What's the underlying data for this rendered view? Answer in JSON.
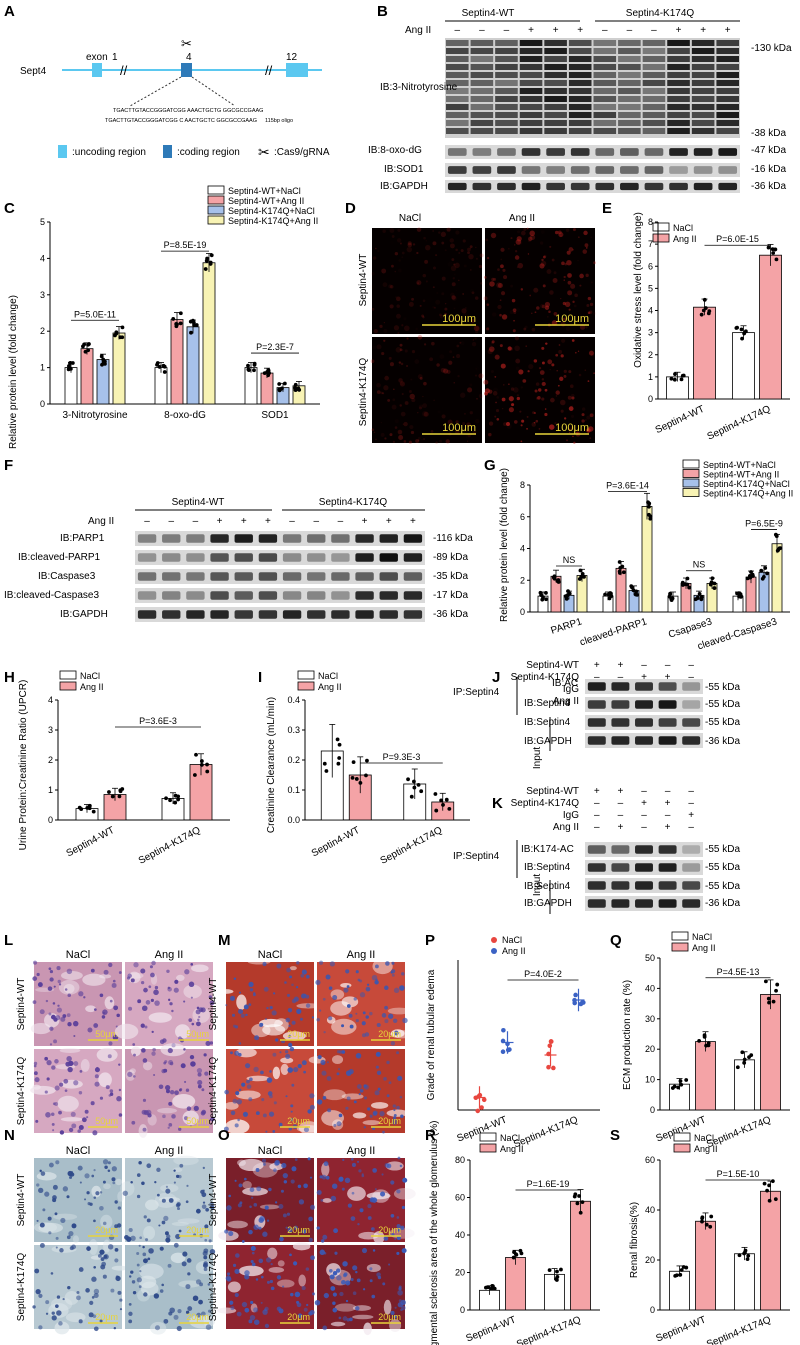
{
  "panels": {
    "A": {
      "letter": "A",
      "gene": "Sept4",
      "exon_word": "exon",
      "exon_numbers": [
        "1",
        "4",
        "12"
      ],
      "seq1": "TGACTTGTACCGGGATCGG AAACTGCTG GGCGCCGAAG",
      "seq2": "TGACTTGTACCGGGATCGG C AACTGCTC GGCGCCGAAG",
      "oligo_label": "115bp oligo",
      "legend": {
        "uncoding": ":uncoding region",
        "coding": ":coding region",
        "cas9": ":Cas9/gRNA"
      },
      "colors": {
        "uncoding": "#5bc8f0",
        "coding": "#2e7ab8"
      }
    },
    "B": {
      "letter": "B",
      "groups": [
        "Septin4-WT",
        "Septin4-K174Q"
      ],
      "treat_label": "Ang II",
      "treat": [
        "–",
        "–",
        "–",
        "+",
        "+",
        "+",
        "–",
        "–",
        "–",
        "+",
        "+",
        "+"
      ],
      "rows": [
        "IB:3-Nitrotyrosine",
        "IB:8-oxo-dG",
        "IB:SOD1",
        "IB:GAPDH"
      ],
      "mw": [
        "-130 kDa",
        "-38 kDa",
        "-47 kDa",
        "-16 kDa",
        "-36 kDa"
      ]
    },
    "C": {
      "letter": "C",
      "ylabel": "Relative protein level (fold change)",
      "legend": [
        "Septin4-WT+NaCl",
        "Septin4-WT+Ang II",
        "Septin4-K174Q+NaCl",
        "Septin4-K174Q+Ang II"
      ],
      "pvals": [
        "P=5.0E-11",
        "P=8.5E-19",
        "P=2.3E-7"
      ]
    },
    "D": {
      "letter": "D",
      "cols": [
        "NaCl",
        "Ang II"
      ],
      "rows": [
        "Septin4-WT",
        "Septin4-K174Q"
      ],
      "scale": "100μm"
    },
    "E": {
      "letter": "E",
      "ylabel": "Oxidative stress level (fold change)",
      "legend": [
        "NaCl",
        "Ang II"
      ],
      "pval": "P=6.0E-15"
    },
    "F": {
      "letter": "F",
      "groups": [
        "Septin4-WT",
        "Septin4-K174Q"
      ],
      "treat_label": "Ang II",
      "treat": [
        "–",
        "–",
        "–",
        "+",
        "+",
        "+",
        "–",
        "–",
        "–",
        "+",
        "+",
        "+"
      ],
      "rows": [
        "IB:PARP1",
        "IB:cleaved-PARP1",
        "IB:Caspase3",
        "IB:cleaved-Caspase3",
        "IB:GAPDH"
      ],
      "mw": [
        "-116 kDa",
        "-89 kDa",
        "-35 kDa",
        "-17 kDa",
        "-36 kDa"
      ]
    },
    "G": {
      "letter": "G",
      "ylabel": "Relative protein level (fold change)",
      "legend": [
        "Septin4-WT+NaCl",
        "Septin4-WT+Ang II",
        "Septin4-K174Q+NaCl",
        "Septin4-K174Q+Ang II"
      ],
      "pvals": [
        "NS",
        "P=3.6E-14",
        "NS",
        "P=6.5E-9"
      ]
    },
    "H": {
      "letter": "H",
      "ylabel": "Urine Protein:Creatinine Ratio (UPCR)",
      "legend": [
        "NaCl",
        "Ang II"
      ],
      "pval": "P=3.6E-3"
    },
    "I": {
      "letter": "I",
      "ylabel": "Creatinine Clearance (mL/min)",
      "legend": [
        "NaCl",
        "Ang II"
      ],
      "pval": "P=9.3E-3"
    },
    "J": {
      "letter": "J",
      "cond_rows": [
        {
          "label": "Septin4-WT",
          "vals": [
            "+",
            "+",
            "–",
            "–",
            "–"
          ]
        },
        {
          "label": "Septin4-K174Q",
          "vals": [
            "–",
            "–",
            "+",
            "+",
            "–"
          ]
        },
        {
          "label": "IgG",
          "vals": [
            "–",
            "–",
            "–",
            "–",
            "+"
          ]
        },
        {
          "label": "Ang II",
          "vals": [
            "–",
            "+",
            "–",
            "+",
            "–"
          ]
        }
      ],
      "ip_label": "IP:Septin4",
      "input_label": "Input",
      "rows": [
        "IB:AC",
        "IB:Septin4",
        "IB:Septin4",
        "IB:GAPDH"
      ],
      "mw": [
        "-55 kDa",
        "-55 kDa",
        "-55 kDa",
        "-36 kDa"
      ]
    },
    "K": {
      "letter": "K",
      "cond_rows": [
        {
          "label": "Septin4-WT",
          "vals": [
            "+",
            "+",
            "–",
            "–",
            "–"
          ]
        },
        {
          "label": "Septin4-K174Q",
          "vals": [
            "–",
            "–",
            "+",
            "+",
            "–"
          ]
        },
        {
          "label": "IgG",
          "vals": [
            "–",
            "–",
            "–",
            "–",
            "+"
          ]
        },
        {
          "label": "Ang II",
          "vals": [
            "–",
            "+",
            "–",
            "+",
            "–"
          ]
        }
      ],
      "ip_label": "IP:Septin4",
      "input_label": "Input",
      "rows": [
        "IB:K174-AC",
        "IB:Septin4",
        "IB:Septin4",
        "IB:GAPDH"
      ],
      "mw": [
        "-55 kDa",
        "-55 kDa",
        "-55 kDa",
        "-36 kDa"
      ]
    },
    "L": {
      "letter": "L",
      "cols": [
        "NaCl",
        "Ang II"
      ],
      "rows": [
        "Septin4-WT",
        "Septin4-K174Q"
      ],
      "scale": "50μm"
    },
    "M": {
      "letter": "M",
      "cols": [
        "NaCl",
        "Ang II"
      ],
      "rows": [
        "Septin4-WT",
        "Septin4-K174Q"
      ],
      "scale": "20μm"
    },
    "N": {
      "letter": "N",
      "cols": [
        "NaCl",
        "Ang II"
      ],
      "rows": [
        "Septin4-WT",
        "Septin4-K174Q"
      ],
      "scale": "20μm"
    },
    "O": {
      "letter": "O",
      "cols": [
        "NaCl",
        "Ang II"
      ],
      "rows": [
        "Septin4-WT",
        "Septin4-K174Q"
      ],
      "scale": "20μm"
    },
    "P": {
      "letter": "P",
      "ylabel": "Grade of renal tubular edema",
      "legend": [
        "NaCl",
        "Ang II"
      ],
      "pval": "P=4.0E-2"
    },
    "Q": {
      "letter": "Q",
      "ylabel": "ECM production rate (%)",
      "legend": [
        "NaCl",
        "Ang II"
      ],
      "pval": "P=4.5E-13"
    },
    "R": {
      "letter": "R",
      "ylabel": "Segmental sclerosis area of the whole glomerulus (%)",
      "legend": [
        "NaCl",
        "Ang II"
      ],
      "pval": "P=1.6E-19"
    },
    "S": {
      "letter": "S",
      "ylabel": "Renal fibrosis(%)",
      "legend": [
        "NaCl",
        "Ang II"
      ],
      "pval": "P=1.5E-10"
    }
  },
  "colors": {
    "wt_nacl": "#ffffff",
    "wt_ang": "#f4a3a6",
    "k_nacl": "#a7c1ea",
    "k_ang": "#f8f3b4",
    "p_nacl": "#e8463f",
    "p_ang": "#3b62c4"
  },
  "chart_data": [
    {
      "panel": "C",
      "type": "bar",
      "categories": [
        "3-Nitrotyrosine",
        "8-oxo-dG",
        "SOD1"
      ],
      "series": [
        {
          "name": "Septin4-WT+NaCl",
          "values": [
            1.0,
            1.0,
            1.0
          ]
        },
        {
          "name": "Septin4-WT+Ang II",
          "values": [
            1.52,
            2.32,
            0.85
          ]
        },
        {
          "name": "Septin4-K174Q+NaCl",
          "values": [
            1.22,
            2.12,
            0.45
          ]
        },
        {
          "name": "Septin4-K174Q+Ang II",
          "values": [
            1.95,
            3.88,
            0.5
          ]
        }
      ],
      "ylim": [
        0,
        5
      ],
      "yticks": [
        "0",
        "1",
        "2",
        "3",
        "4",
        "5"
      ]
    },
    {
      "panel": "E",
      "type": "bar",
      "categories": [
        "Septin4-WT",
        "Septin4-K174Q"
      ],
      "series": [
        {
          "name": "NaCl",
          "values": [
            1.0,
            3.0
          ]
        },
        {
          "name": "Ang II",
          "values": [
            4.15,
            6.5
          ]
        }
      ],
      "ylim": [
        0,
        8
      ],
      "yticks": [
        "0",
        "1",
        "2",
        "3",
        "4",
        "5",
        "6",
        "7",
        "8"
      ]
    },
    {
      "panel": "G",
      "type": "bar",
      "categories": [
        "PARP1",
        "cleaved-PARP1",
        "Csapase3",
        "cleaved-Caspase3"
      ],
      "series": [
        {
          "name": "Septin4-WT+NaCl",
          "values": [
            1.0,
            1.0,
            1.0,
            1.0
          ]
        },
        {
          "name": "Septin4-WT+Ang II",
          "values": [
            2.25,
            2.75,
            1.8,
            2.2
          ]
        },
        {
          "name": "Septin4-K174Q+NaCl",
          "values": [
            1.05,
            1.35,
            1.05,
            2.5
          ]
        },
        {
          "name": "Septin4-K174Q+Ang II",
          "values": [
            2.3,
            6.65,
            1.8,
            4.3
          ]
        }
      ],
      "ylim": [
        0,
        8
      ],
      "yticks": [
        "0",
        "2",
        "4",
        "6",
        "8"
      ]
    },
    {
      "panel": "H",
      "type": "bar",
      "categories": [
        "Septin4-WT",
        "Septin4-K174Q"
      ],
      "series": [
        {
          "name": "NaCl",
          "values": [
            0.38,
            0.72
          ]
        },
        {
          "name": "Ang II",
          "values": [
            0.85,
            1.85
          ]
        }
      ],
      "ylim": [
        0,
        4
      ],
      "yticks": [
        "0",
        "1",
        "2",
        "3",
        "4"
      ]
    },
    {
      "panel": "I",
      "type": "bar",
      "categories": [
        "Septin4-WT",
        "Septin4-K174Q"
      ],
      "series": [
        {
          "name": "NaCl",
          "values": [
            0.23,
            0.12
          ]
        },
        {
          "name": "Ang II",
          "values": [
            0.15,
            0.06
          ]
        }
      ],
      "ylim": [
        0,
        0.4
      ],
      "yticks": [
        "0.0",
        "0.1",
        "0.2",
        "0.3",
        "0.4"
      ]
    },
    {
      "panel": "P",
      "type": "scatter",
      "categories": [
        "Septin4-WT",
        "Septin4-K174Q"
      ],
      "series": [
        {
          "name": "NaCl",
          "values": [
            0.5,
            2.2
          ]
        },
        {
          "name": "Ang II",
          "values": [
            2.7,
            4.4
          ]
        }
      ],
      "ylim": [
        0,
        6
      ],
      "yticks": []
    },
    {
      "panel": "Q",
      "type": "bar",
      "categories": [
        "Septin4-WT",
        "Septin4-K174Q"
      ],
      "series": [
        {
          "name": "NaCl",
          "values": [
            8.5,
            16.5
          ]
        },
        {
          "name": "Ang II",
          "values": [
            22.5,
            38.0
          ]
        }
      ],
      "ylim": [
        0,
        50
      ],
      "yticks": [
        "0",
        "10",
        "20",
        "30",
        "40",
        "50"
      ]
    },
    {
      "panel": "R",
      "type": "bar",
      "categories": [
        "Septin4-WT",
        "Septin4-K174Q"
      ],
      "series": [
        {
          "name": "NaCl",
          "values": [
            10.5,
            19.0
          ]
        },
        {
          "name": "Ang II",
          "values": [
            28.0,
            58.0
          ]
        }
      ],
      "ylim": [
        0,
        80
      ],
      "yticks": [
        "0",
        "20",
        "40",
        "60",
        "80"
      ]
    },
    {
      "panel": "S",
      "type": "bar",
      "categories": [
        "Septin4-WT",
        "Septin4-K174Q"
      ],
      "series": [
        {
          "name": "NaCl",
          "values": [
            15.5,
            22.5
          ]
        },
        {
          "name": "Ang II",
          "values": [
            35.5,
            47.5
          ]
        }
      ],
      "ylim": [
        0,
        60
      ],
      "yticks": [
        "0",
        "20",
        "40",
        "60"
      ]
    }
  ]
}
